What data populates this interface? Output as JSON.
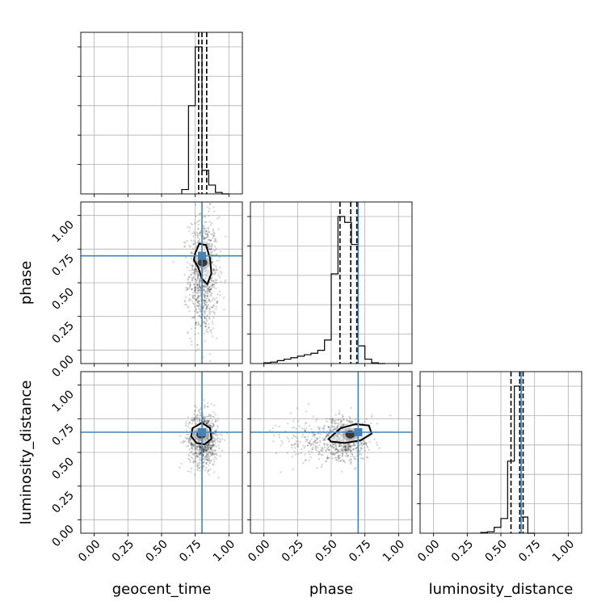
{
  "chart_data": {
    "type": "corner",
    "parameters": [
      "geocent_time",
      "phase",
      "luminosity_distance"
    ],
    "axis_labels": [
      "geocent_time",
      "phase",
      "luminosity_distance"
    ],
    "tick_values": [
      0.0,
      0.25,
      0.5,
      0.75,
      1.0
    ],
    "tick_labels": [
      "0.00",
      "0.25",
      "0.50",
      "0.75",
      "1.00"
    ],
    "xlim": [
      -0.1,
      1.1
    ],
    "ylim": [
      -0.1,
      1.1
    ],
    "grid": true,
    "truths": {
      "geocent_time": 0.8,
      "phase": 0.7,
      "luminosity_distance": 0.65
    },
    "truth_color": "#4682b4",
    "quantile_lines": {
      "geocent_time": [
        0.775,
        0.8,
        0.835
      ],
      "phase": [
        0.565,
        0.645,
        0.69
      ],
      "luminosity_distance": [
        0.575,
        0.64,
        0.665
      ]
    },
    "histograms": [
      {
        "param": "geocent_time",
        "bins": [
          0.65,
          0.7,
          0.75,
          0.8,
          0.85,
          0.9,
          0.95,
          1.0
        ],
        "counts": [
          0.03,
          0.6,
          1.0,
          0.16,
          0.06,
          0.01,
          0.0
        ]
      },
      {
        "param": "phase",
        "bins": [
          0.0,
          0.05,
          0.1,
          0.15,
          0.2,
          0.25,
          0.3,
          0.35,
          0.4,
          0.45,
          0.5,
          0.55,
          0.6,
          0.65,
          0.7,
          0.75,
          0.8,
          0.85,
          0.9
        ],
        "counts": [
          0.005,
          0.01,
          0.02,
          0.03,
          0.04,
          0.05,
          0.06,
          0.07,
          0.09,
          0.16,
          0.61,
          1.0,
          0.96,
          0.81,
          0.12,
          0.03,
          0.005,
          0.0
        ]
      },
      {
        "param": "luminosity_distance",
        "bins": [
          0.35,
          0.4,
          0.45,
          0.5,
          0.55,
          0.6,
          0.65,
          0.7,
          0.75
        ],
        "counts": [
          0.005,
          0.01,
          0.04,
          0.1,
          0.49,
          1.0,
          0.11,
          0.0
        ]
      }
    ],
    "scatter_panels": [
      {
        "x": "geocent_time",
        "y": "phase",
        "center": [
          0.81,
          0.55
        ],
        "spread": [
          0.055,
          0.22
        ],
        "contour": [
          [
            0.75,
            0.72
          ],
          [
            0.78,
            0.79
          ],
          [
            0.83,
            0.78
          ],
          [
            0.86,
            0.68
          ],
          [
            0.87,
            0.57
          ],
          [
            0.84,
            0.49
          ],
          [
            0.8,
            0.53
          ],
          [
            0.77,
            0.62
          ],
          [
            0.74,
            0.67
          ]
        ]
      },
      {
        "x": "geocent_time",
        "y": "luminosity_distance",
        "center": [
          0.81,
          0.6
        ],
        "spread": [
          0.055,
          0.1
        ],
        "contour": [
          [
            0.73,
            0.68
          ],
          [
            0.8,
            0.72
          ],
          [
            0.86,
            0.68
          ],
          [
            0.87,
            0.6
          ],
          [
            0.82,
            0.56
          ],
          [
            0.76,
            0.57
          ],
          [
            0.72,
            0.62
          ]
        ]
      },
      {
        "x": "phase",
        "y": "luminosity_distance",
        "center": [
          0.55,
          0.6
        ],
        "spread": [
          0.22,
          0.08
        ],
        "contour": [
          [
            0.48,
            0.6
          ],
          [
            0.57,
            0.68
          ],
          [
            0.68,
            0.71
          ],
          [
            0.78,
            0.7
          ],
          [
            0.8,
            0.64
          ],
          [
            0.72,
            0.59
          ],
          [
            0.6,
            0.57
          ],
          [
            0.5,
            0.58
          ]
        ]
      }
    ]
  }
}
